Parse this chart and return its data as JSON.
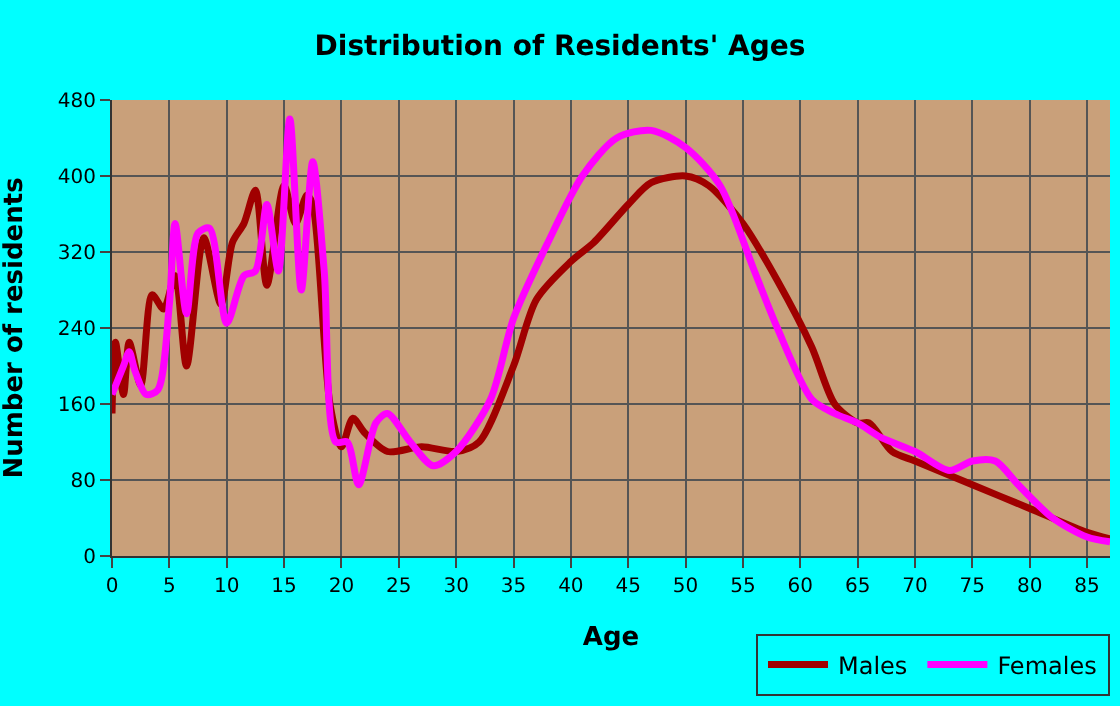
{
  "chart_data": {
    "type": "line",
    "title": "Distribution of Residents' Ages",
    "xlabel": "Age",
    "ylabel": "Number of residents",
    "xlim": [
      0,
      87
    ],
    "xticks": [
      0,
      5,
      10,
      15,
      20,
      25,
      30,
      35,
      40,
      45,
      50,
      55,
      60,
      65,
      70,
      75,
      80,
      85
    ],
    "ylim": [
      0,
      480
    ],
    "yticks": [
      0,
      80,
      160,
      240,
      320,
      400,
      480
    ],
    "grid": true,
    "legend": "bottom right",
    "marker": "none",
    "line_style": "solid",
    "series": [
      {
        "name": "Males",
        "color": "#a00000",
        "x": [
          0,
          0.3,
          1,
          1.5,
          2.5,
          3.5,
          4.5,
          5.5,
          6.5,
          8,
          9.5,
          10.5,
          11.5,
          12.5,
          13.5,
          15,
          16,
          17,
          17.5,
          19,
          20,
          21,
          22,
          24,
          27,
          30,
          32,
          35,
          37,
          40,
          42,
          45,
          47,
          50,
          52,
          55,
          58,
          61,
          63,
          65,
          66,
          68,
          70,
          75,
          80,
          85,
          87
        ],
        "values": [
          150,
          225,
          170,
          225,
          180,
          275,
          260,
          295,
          200,
          335,
          265,
          330,
          350,
          385,
          285,
          390,
          350,
          380,
          370,
          160,
          115,
          145,
          130,
          110,
          115,
          110,
          120,
          200,
          270,
          310,
          330,
          370,
          393,
          400,
          390,
          350,
          290,
          220,
          160,
          140,
          140,
          110,
          100,
          75,
          50,
          25,
          18
        ]
      },
      {
        "name": "Females",
        "color": "#ff00ff",
        "x": [
          0,
          1,
          1.5,
          2,
          3,
          4,
          5,
          5.5,
          6.5,
          7.5,
          8.5,
          10,
          11.5,
          12.5,
          13.5,
          14.5,
          15.5,
          16.5,
          17.5,
          18.5,
          19.5,
          20.5,
          21.5,
          23,
          24,
          26,
          28,
          30,
          33,
          35,
          38,
          41,
          44,
          47,
          50,
          53,
          56,
          58,
          61,
          63,
          65,
          67,
          70,
          73,
          75,
          77,
          79,
          82,
          85,
          87
        ],
        "values": [
          170,
          200,
          215,
          195,
          170,
          175,
          265,
          350,
          255,
          340,
          345,
          245,
          295,
          300,
          370,
          300,
          460,
          280,
          415,
          300,
          120,
          120,
          75,
          140,
          150,
          120,
          95,
          110,
          165,
          250,
          330,
          400,
          440,
          448,
          430,
          390,
          300,
          240,
          165,
          150,
          140,
          125,
          110,
          90,
          100,
          100,
          75,
          40,
          20,
          15
        ]
      }
    ]
  }
}
